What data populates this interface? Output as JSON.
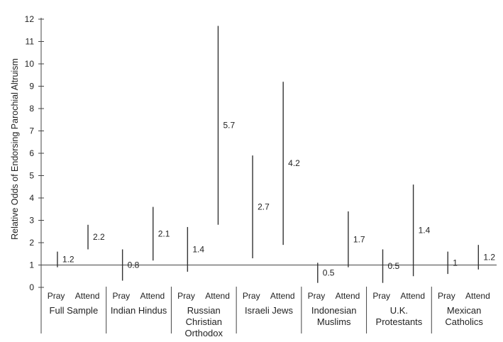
{
  "chart_data": {
    "type": "range",
    "ylabel": "Relative Odds of Endorsing Parochial Altruism",
    "xlabel": "",
    "title": "",
    "ylim": [
      0,
      12
    ],
    "yticks": [
      0,
      1,
      2,
      3,
      4,
      5,
      6,
      7,
      8,
      9,
      10,
      11,
      12
    ],
    "reference_line": 1,
    "grid": false,
    "groups": [
      {
        "label": "Full Sample",
        "items": [
          {
            "sub": "Pray",
            "value": "1.2",
            "low": 0.9,
            "high": 1.6
          },
          {
            "sub": "Attend",
            "value": "2.2",
            "low": 1.7,
            "high": 2.8
          }
        ]
      },
      {
        "label": "Indian Hindus",
        "items": [
          {
            "sub": "Pray",
            "value": "0.8",
            "low": 0.3,
            "high": 1.7
          },
          {
            "sub": "Attend",
            "value": "2.1",
            "low": 1.2,
            "high": 3.6
          }
        ]
      },
      {
        "label": "Russian Christian Orthodox",
        "items": [
          {
            "sub": "Pray",
            "value": "1.4",
            "low": 0.7,
            "high": 2.7
          },
          {
            "sub": "Attend",
            "value": "5.7",
            "low": 2.8,
            "high": 11.7
          }
        ]
      },
      {
        "label": "Israeli Jews",
        "items": [
          {
            "sub": "Pray",
            "value": "2.7",
            "low": 1.3,
            "high": 5.9
          },
          {
            "sub": "Attend",
            "value": "4.2",
            "low": 1.9,
            "high": 9.2
          }
        ]
      },
      {
        "label": "Indonesian Muslims",
        "items": [
          {
            "sub": "Pray",
            "value": "0.5",
            "low": 0.2,
            "high": 1.1
          },
          {
            "sub": "Attend",
            "value": "1.7",
            "low": 0.9,
            "high": 3.4
          }
        ]
      },
      {
        "label": "U.K. Protestants",
        "items": [
          {
            "sub": "Pray",
            "value": "0.5",
            "low": 0.2,
            "high": 1.7
          },
          {
            "sub": "Attend",
            "value": "1.4",
            "low": 0.5,
            "high": 4.6
          }
        ]
      },
      {
        "label": "Mexican Catholics",
        "items": [
          {
            "sub": "Pray",
            "value": "1",
            "low": 0.6,
            "high": 1.6
          },
          {
            "sub": "Attend",
            "value": "1.2",
            "low": 0.8,
            "high": 1.9
          }
        ]
      }
    ]
  }
}
